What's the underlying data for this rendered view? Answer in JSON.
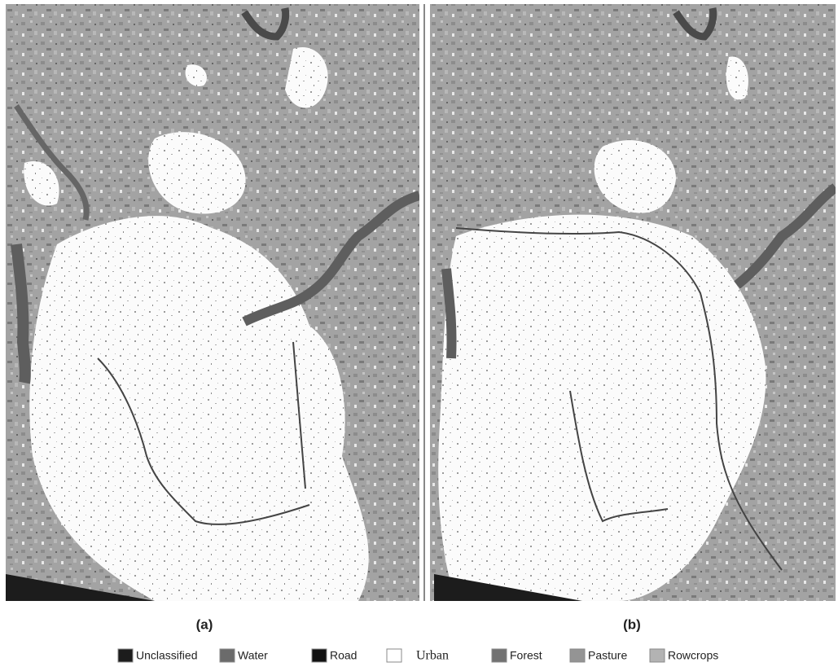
{
  "panels": [
    {
      "label": "(a)"
    },
    {
      "label": "(b)"
    }
  ],
  "legend": [
    {
      "label": "Unclassified",
      "color": "#1c1c1c"
    },
    {
      "label": "Water",
      "color": "#6b6b6b"
    },
    {
      "label": "Road",
      "color": "#111111"
    },
    {
      "label": "Urban",
      "color": "#ffffff"
    },
    {
      "label": "Forest",
      "color": "#727272"
    },
    {
      "label": "Pasture",
      "color": "#949494"
    },
    {
      "label": "Rowcrops",
      "color": "#b3b3b3"
    }
  ]
}
